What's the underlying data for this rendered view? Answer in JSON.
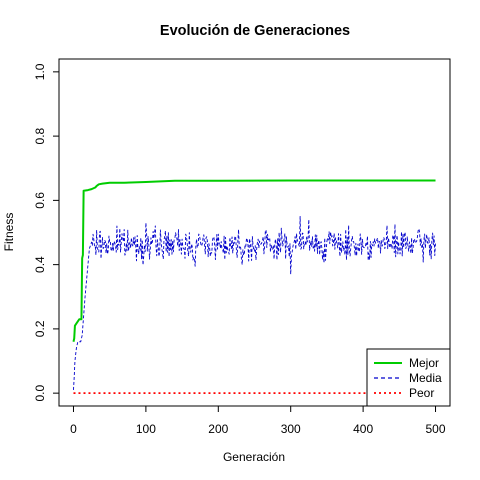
{
  "chart_data": {
    "type": "line",
    "title": "Evolución de Generaciones",
    "xlabel": "Generación",
    "ylabel": "Fitness",
    "xlim": [
      -20,
      520
    ],
    "ylim": [
      -0.04,
      1.04
    ],
    "x_ticks": [
      0,
      100,
      200,
      300,
      400,
      500
    ],
    "y_ticks": [
      0.0,
      0.2,
      0.4,
      0.6,
      0.8,
      1.0
    ],
    "x_tick_labels": [
      "0",
      "100",
      "200",
      "300",
      "400",
      "500"
    ],
    "y_tick_labels": [
      "0.0",
      "0.2",
      "0.4",
      "0.6",
      "0.8",
      "1.0"
    ],
    "grid": false,
    "legend_position": "bottom-right",
    "series": [
      {
        "name": "Mejor",
        "color": "#00cc00",
        "style": "solid",
        "points": [
          [
            0,
            0.16
          ],
          [
            1,
            0.17
          ],
          [
            2,
            0.21
          ],
          [
            5,
            0.22
          ],
          [
            8,
            0.23
          ],
          [
            11,
            0.23
          ],
          [
            12,
            0.42
          ],
          [
            13,
            0.43
          ],
          [
            14,
            0.63
          ],
          [
            20,
            0.632
          ],
          [
            25,
            0.635
          ],
          [
            30,
            0.64
          ],
          [
            32,
            0.645
          ],
          [
            35,
            0.65
          ],
          [
            40,
            0.652
          ],
          [
            50,
            0.655
          ],
          [
            70,
            0.655
          ],
          [
            100,
            0.657
          ],
          [
            120,
            0.659
          ],
          [
            140,
            0.661
          ],
          [
            200,
            0.661
          ],
          [
            300,
            0.662
          ],
          [
            400,
            0.662
          ],
          [
            500,
            0.662
          ]
        ]
      },
      {
        "name": "Media",
        "color": "#0000cc",
        "style": "dashed",
        "start_points": [
          [
            0,
            0.01
          ],
          [
            1,
            0.05
          ],
          [
            2,
            0.1
          ],
          [
            3,
            0.12
          ],
          [
            4,
            0.14
          ],
          [
            5,
            0.15
          ],
          [
            6,
            0.16
          ],
          [
            8,
            0.16
          ],
          [
            10,
            0.16
          ],
          [
            12,
            0.18
          ],
          [
            14,
            0.24
          ],
          [
            16,
            0.3
          ],
          [
            18,
            0.35
          ],
          [
            20,
            0.4
          ],
          [
            22,
            0.45
          ],
          [
            25,
            0.47
          ]
        ],
        "mean": 0.463,
        "noise_amplitude": 0.035,
        "noise_seed": 7,
        "notable_points": [
          [
            60,
            0.52
          ],
          [
            100,
            0.53
          ],
          [
            168,
            0.395
          ],
          [
            233,
            0.4
          ],
          [
            300,
            0.37
          ],
          [
            313,
            0.55
          ],
          [
            325,
            0.54
          ]
        ]
      },
      {
        "name": "Peor",
        "color": "#ff0000",
        "style": "dotted",
        "points": [
          [
            0,
            0.0
          ],
          [
            500,
            0.0
          ]
        ]
      }
    ]
  }
}
